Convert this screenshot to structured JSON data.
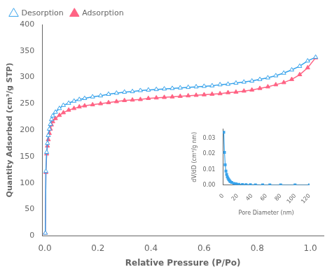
{
  "chart_data": [
    {
      "type": "line",
      "xlabel": "Relative Pressure (P/Po)",
      "ylabel": "Quantity Adsorbed (cm³/g STP)",
      "xlim": [
        -0.01,
        1.05
      ],
      "ylim": [
        0,
        400
      ],
      "xticks": [
        {
          "value": 0,
          "label": "0.0"
        },
        0.2,
        0.4,
        0.6,
        0.8,
        {
          "value": 1,
          "label": "1.0"
        }
      ],
      "yticks": [
        0,
        50,
        100,
        150,
        200,
        250,
        300,
        350,
        400
      ],
      "grid": false,
      "legend": "upper left",
      "x": [
        0.002,
        0.004,
        0.007,
        0.01,
        0.013,
        0.017,
        0.021,
        0.025,
        0.03,
        0.04,
        0.055,
        0.07,
        0.09,
        0.11,
        0.13,
        0.15,
        0.18,
        0.21,
        0.24,
        0.27,
        0.3,
        0.33,
        0.36,
        0.39,
        0.42,
        0.45,
        0.48,
        0.51,
        0.54,
        0.57,
        0.6,
        0.63,
        0.66,
        0.69,
        0.72,
        0.75,
        0.78,
        0.81,
        0.84,
        0.87,
        0.9,
        0.93,
        0.96,
        0.99,
        1.02
      ],
      "series": [
        {
          "name": "Desorption",
          "marker": "triangle",
          "values": [
            5,
            122,
            158,
            175,
            190,
            202,
            211,
            220,
            227,
            234,
            241,
            247,
            251,
            255,
            258,
            260,
            263,
            265,
            268,
            270,
            272,
            273,
            275,
            276,
            277,
            278,
            279,
            280,
            281,
            282,
            283,
            284,
            286,
            287,
            289,
            291,
            293,
            296,
            299,
            303,
            308,
            314,
            321,
            331,
            338
          ]
        },
        {
          "name": "Adsorption",
          "marker": "triangle",
          "values": [
            5,
            120,
            155,
            170,
            182,
            194,
            202,
            210,
            216,
            222,
            228,
            233,
            238,
            241,
            244,
            246,
            248,
            250,
            252,
            254,
            256,
            257,
            258,
            260,
            261,
            262,
            263,
            264,
            265,
            266,
            267,
            268,
            269,
            271,
            272,
            274,
            276,
            279,
            282,
            286,
            290,
            296,
            305,
            318,
            337
          ]
        }
      ]
    },
    {
      "type": "line",
      "xlabel": "Pore Diameter (nm)",
      "ylabel": "dV/dD (cm³/g nm)",
      "xlim": [
        0,
        120
      ],
      "ylim": [
        0.0,
        0.036
      ],
      "xticks": [
        0,
        20,
        40,
        60,
        80,
        100,
        120
      ],
      "yticks": [
        {
          "value": 0,
          "label": "0.00"
        },
        0.01,
        0.02,
        0.03
      ],
      "grid": false,
      "marker": "square",
      "x": [
        1,
        2,
        3,
        4,
        5,
        6,
        7,
        8,
        9,
        10,
        12,
        15,
        18,
        22,
        27,
        32,
        38,
        45,
        55,
        65,
        80,
        100,
        120
      ],
      "values": [
        0.034,
        0.021,
        0.013,
        0.009,
        0.0068,
        0.0052,
        0.0042,
        0.0034,
        0.0028,
        0.0022,
        0.0016,
        0.001,
        0.00068,
        0.00044,
        0.00028,
        0.00019,
        0.00013,
        9e-05,
        6e-05,
        4e-05,
        2.5e-05,
        1.5e-05,
        1e-05
      ]
    }
  ]
}
